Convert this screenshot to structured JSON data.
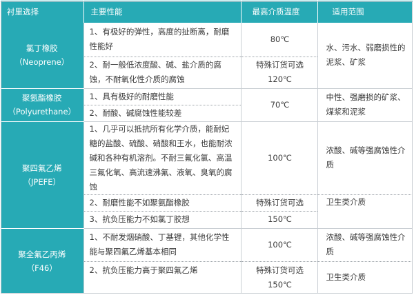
{
  "headers": [
    "衬里选择",
    "主要性能",
    "最高介质温度",
    "适用范围"
  ],
  "groups": [
    {
      "lining": [
        "氯丁橡胶",
        "（Neoprene）"
      ],
      "rows": [
        {
          "perf": [
            "1、有极好的弹性，高度的扯断离，耐磨性能好"
          ],
          "temp": [
            "80℃"
          ],
          "app": [
            "水、污水、弱磨损性的泥浆、矿浆"
          ]
        },
        {
          "perf": [
            "2、耐一般低浓度酸、碱、盐介质的腐蚀，不耐氧化性介质的腐蚀"
          ],
          "temp": [
            "特殊订货可选",
            "120℃"
          ],
          "app": []
        }
      ]
    },
    {
      "lining": [
        "聚氨酯橡胶",
        "（Polyurethane）"
      ],
      "rows": [
        {
          "perf": [
            "1、具有极好的耐磨性能"
          ],
          "temp": [
            "70℃"
          ],
          "app": [
            "中性、强磨损的矿浆、煤浆和泥浆"
          ]
        },
        {
          "perf": [
            "2、耐酸、碱腐蚀性能较差"
          ],
          "temp": [],
          "app": []
        }
      ]
    },
    {
      "lining": [
        "聚四氟乙烯",
        "（JPEFE）"
      ],
      "rows": [
        {
          "perf": [
            "1、几乎可以抵抗所有化学介质，能耐妃糖的盐酸、硫酸、硝酸和王水，也能耐浓碱和各种有机溶剂。不耐三氟化氯、高温三氟化氧、高流速沸氟、液氧、臭氧的腐蚀"
          ],
          "temp": [
            "100℃"
          ],
          "app": [
            "浓酸、碱等强腐蚀性介质"
          ]
        },
        {
          "perf": [
            "2、耐磨性能不如聚氨酯橡胶"
          ],
          "temp": [
            "特殊订货可选"
          ],
          "app": [
            "卫生类介质"
          ]
        },
        {
          "perf": [
            "3、抗负压能力不如氯丁胶想"
          ],
          "temp": [
            "150℃"
          ],
          "app": []
        }
      ]
    },
    {
      "lining": [
        "聚全氟乙丙烯",
        "（F46）"
      ],
      "rows": [
        {
          "perf": [
            "1、不耐发烟硝酸、丁基锂，其他化学性能与聚四氟乙烯基本相同"
          ],
          "temp": [
            "100℃"
          ],
          "app": [
            "浓酸、碱等强腐蚀性介质"
          ]
        },
        {
          "perf": [
            "2、抗负压能力高于聚四氟乙烯"
          ],
          "temp": [
            "特殊订货可选",
            "150℃"
          ],
          "app": [
            "卫生类介质"
          ]
        }
      ]
    }
  ]
}
